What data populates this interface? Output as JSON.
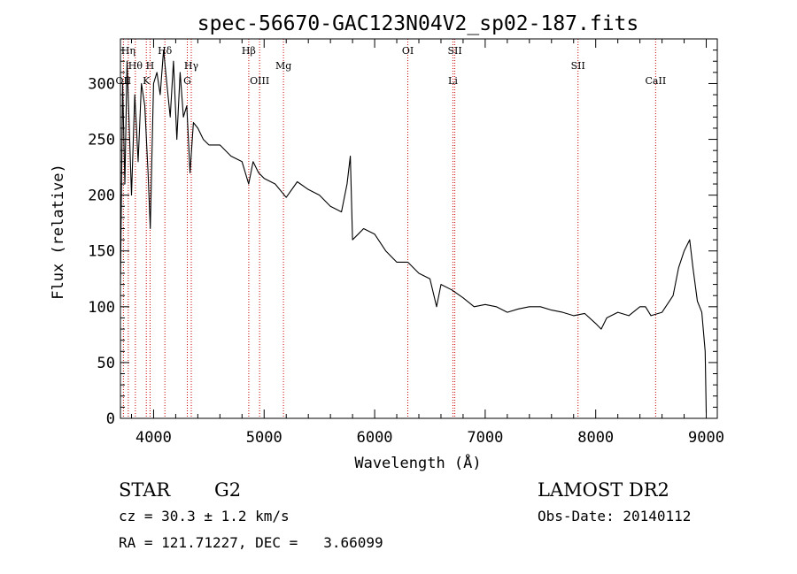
{
  "chart_data": {
    "type": "line",
    "title": "spec-56670-GAC123N04V2_sp02-187.fits",
    "xlabel": "Wavelength (Å)",
    "ylabel": "Flux (relative)",
    "xlim": [
      3700,
      9100
    ],
    "ylim": [
      0,
      340
    ],
    "xticks": [
      4000,
      5000,
      6000,
      7000,
      8000,
      9000
    ],
    "yticks": [
      0,
      50,
      100,
      150,
      200,
      250,
      300
    ],
    "grid": false,
    "line_color": "#000000",
    "marker_color": "#cc0000",
    "series": [
      {
        "x": [
          3700,
          3720,
          3740,
          3760,
          3780,
          3800,
          3830,
          3860,
          3890,
          3920,
          3950,
          3970,
          4000,
          4030,
          4060,
          4090,
          4120,
          4150,
          4180,
          4210,
          4240,
          4270,
          4300,
          4330,
          4360,
          4400,
          4450,
          4500,
          4600,
          4700,
          4800,
          4860,
          4900,
          4950,
          5000,
          5100,
          5200,
          5300,
          5400,
          5500,
          5600,
          5700,
          5750,
          5780,
          5800,
          5850,
          5900,
          6000,
          6100,
          6200,
          6300,
          6400,
          6500,
          6560,
          6600,
          6700,
          6800,
          6900,
          7000,
          7100,
          7200,
          7300,
          7400,
          7500,
          7600,
          7700,
          7800,
          7900,
          8000,
          8050,
          8100,
          8200,
          8300,
          8400,
          8450,
          8500,
          8600,
          8700,
          8750,
          8800,
          8850,
          8880,
          8920,
          8960,
          8990,
          9000
        ],
        "y": [
          120,
          300,
          210,
          320,
          260,
          200,
          290,
          230,
          300,
          280,
          220,
          170,
          300,
          310,
          290,
          330,
          300,
          270,
          320,
          250,
          310,
          270,
          280,
          220,
          265,
          260,
          250,
          245,
          245,
          235,
          230,
          210,
          230,
          220,
          215,
          210,
          198,
          212,
          205,
          200,
          190,
          185,
          210,
          235,
          160,
          165,
          170,
          165,
          150,
          140,
          140,
          130,
          125,
          100,
          120,
          115,
          108,
          100,
          102,
          100,
          95,
          98,
          100,
          100,
          97,
          95,
          92,
          94,
          85,
          80,
          90,
          95,
          92,
          100,
          100,
          92,
          95,
          110,
          135,
          150,
          160,
          135,
          105,
          95,
          60,
          5
        ]
      }
    ],
    "line_markers": [
      {
        "wl": 3727,
        "label": "OII",
        "row": 3
      },
      {
        "wl": 3771,
        "label": "Hη",
        "row": 1
      },
      {
        "wl": 3835,
        "label": "Hθ",
        "row": 2
      },
      {
        "wl": 3934,
        "label": "K",
        "row": 3
      },
      {
        "wl": 3968,
        "label": "H",
        "row": 2
      },
      {
        "wl": 4102,
        "label": "Hδ",
        "row": 1
      },
      {
        "wl": 4305,
        "label": "G",
        "row": 3
      },
      {
        "wl": 4341,
        "label": "Hγ",
        "row": 2
      },
      {
        "wl": 4861,
        "label": "Hβ",
        "row": 1
      },
      {
        "wl": 4959,
        "label": "OIII",
        "row": 3
      },
      {
        "wl": 5175,
        "label": "Mg",
        "row": 2
      },
      {
        "wl": 6300,
        "label": "OI",
        "row": 1
      },
      {
        "wl": 6708,
        "label": "Li",
        "row": 3
      },
      {
        "wl": 6725,
        "label": "SII",
        "row": 1
      },
      {
        "wl": 7840,
        "label": "SII",
        "row": 2
      },
      {
        "wl": 8542,
        "label": "CaII",
        "row": 3
      }
    ]
  },
  "info": {
    "object_type": "STAR",
    "subclass": "G2",
    "survey": "LAMOST DR2",
    "cz": "cz = 30.3 ± 1.2 km/s",
    "obs_date": "Obs-Date: 20140112",
    "coords": "RA = 121.71227, DEC =   3.66099"
  }
}
